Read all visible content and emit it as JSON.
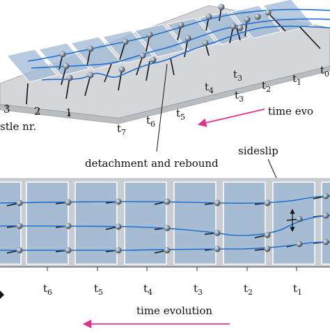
{
  "top_panel": {
    "time_labels": [
      {
        "main": "t",
        "sub": "0"
      },
      {
        "main": "t",
        "sub": "1"
      },
      {
        "main": "t",
        "sub": "2"
      },
      {
        "main": "t",
        "sub": "3"
      },
      {
        "main": "t",
        "sub": "3"
      },
      {
        "main": "t",
        "sub": "4"
      },
      {
        "main": "t",
        "sub": "5"
      },
      {
        "main": "t",
        "sub": "6"
      },
      {
        "main": "t",
        "sub": "7"
      }
    ],
    "particle_ticks": [
      "3",
      "2",
      "1"
    ],
    "particle_axis_label": "stle nr.",
    "time_axis_label": "time evo"
  },
  "annotations": {
    "detachment": "detachment and rebound",
    "sideslip": "sideslip"
  },
  "bottom_panel": {
    "time_labels": [
      {
        "main": "t",
        "sub": "6"
      },
      {
        "main": "t",
        "sub": "5"
      },
      {
        "main": "t",
        "sub": "4"
      },
      {
        "main": "t",
        "sub": "3"
      },
      {
        "main": "t",
        "sub": "2"
      },
      {
        "main": "t",
        "sub": "1"
      }
    ],
    "time_axis_label": "time evolution"
  },
  "colors": {
    "panel_blue": "#9fb8d4",
    "curve_blue": "#1f6fd0",
    "arrow_magenta": "#e0338f",
    "ball_gray": "#7f8c99",
    "pole_black": "#111111"
  }
}
